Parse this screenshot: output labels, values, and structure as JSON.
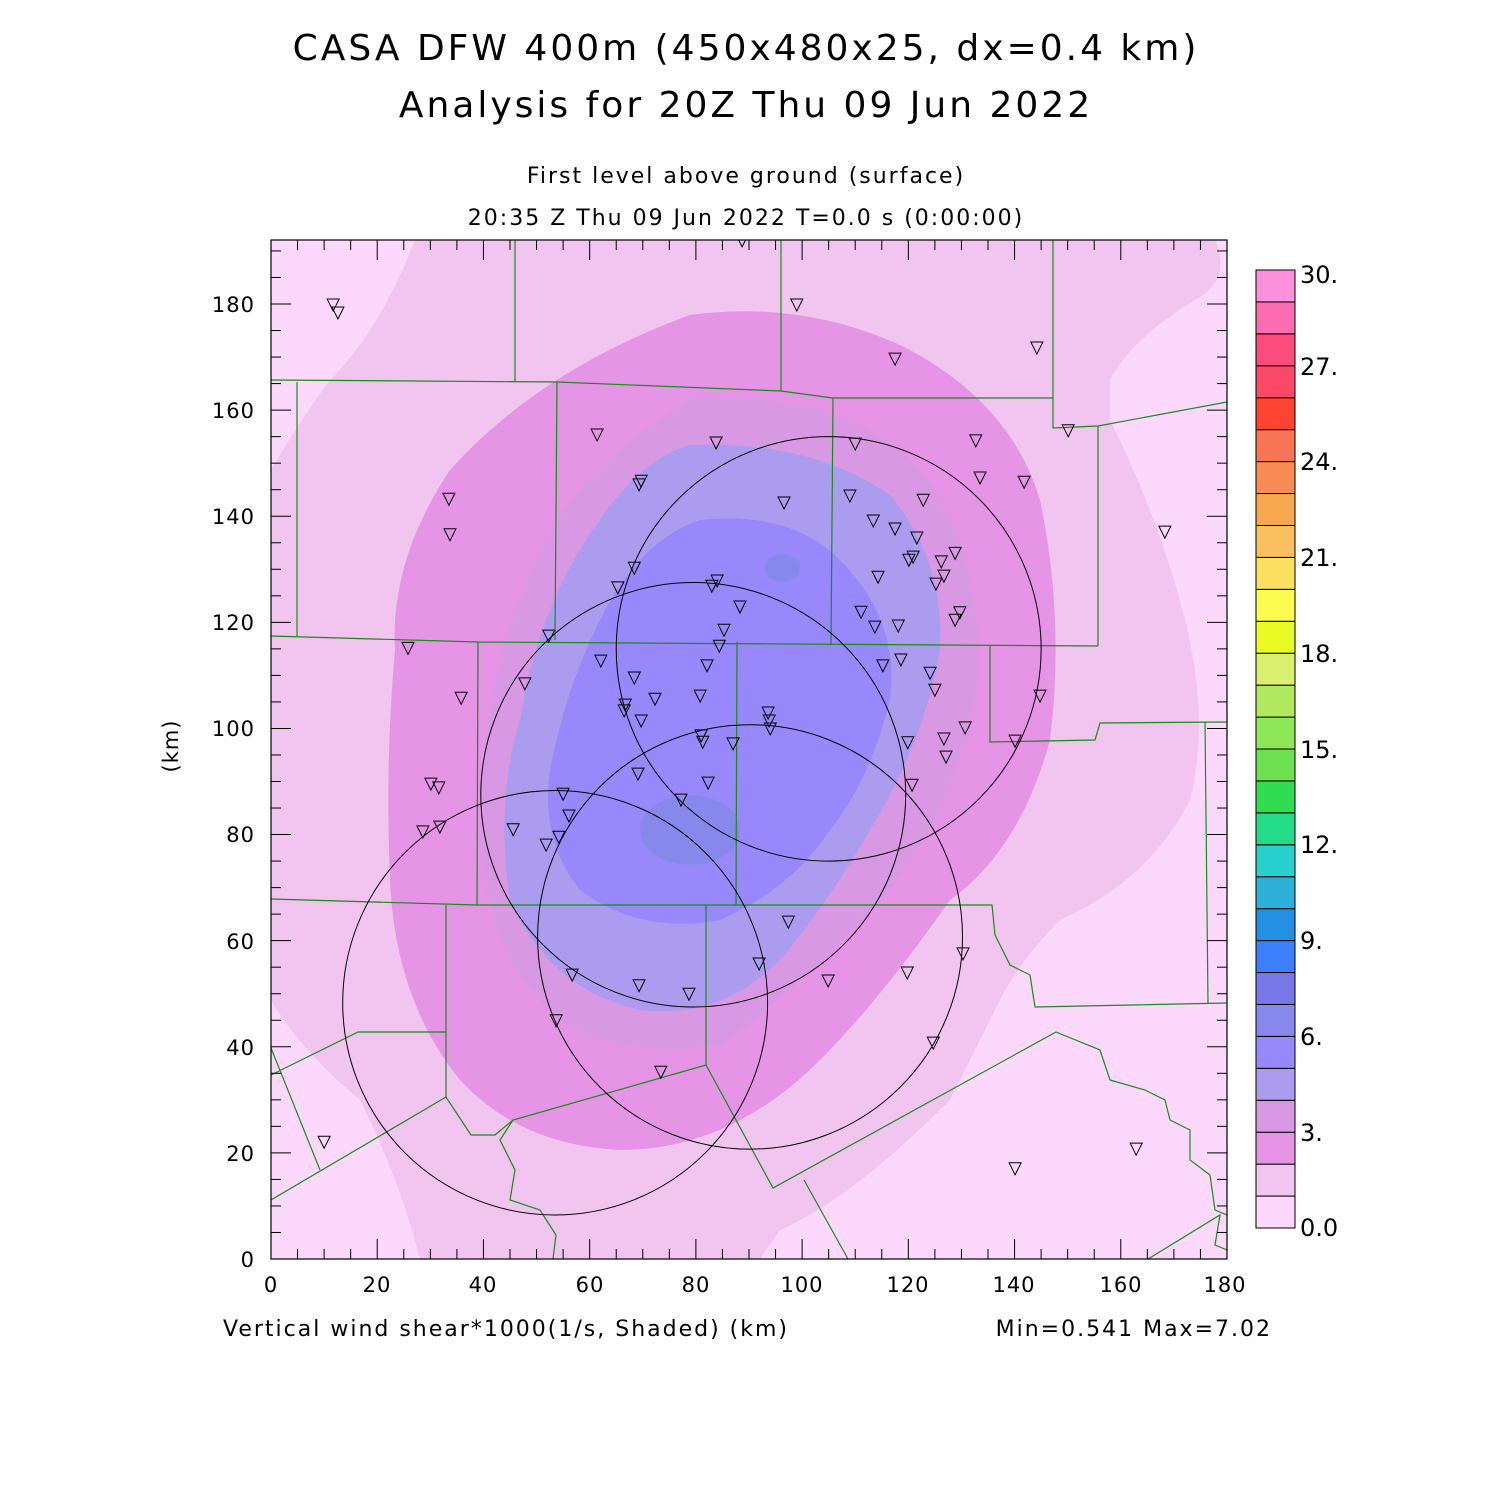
{
  "header": {
    "title_line1": "CASA DFW 400m (450x480x25, dx=0.4 km)",
    "title_line2": "Analysis for 20Z Thu 09 Jun 2022",
    "subtitle": "First level above ground (surface)",
    "time_line": "20:35 Z Thu 09 Jun 2022    T=0.0 s (0:00:00)"
  },
  "footer": {
    "field_label": "Vertical wind shear*1000(1/s, Shaded)  (km)",
    "minmax": "Min=0.541  Max=7.02"
  },
  "chart_data": {
    "type": "heatmap",
    "title": "CASA DFW 400m (450x480x25, dx=0.4 km)",
    "xlabel": "(km)",
    "ylabel": "(km)",
    "xlim": [
      0,
      180
    ],
    "ylim": [
      0,
      192
    ],
    "x_ticks": [
      "0",
      "20",
      "40",
      "60",
      "80",
      "100",
      "120",
      "140",
      "160",
      "180"
    ],
    "y_ticks": [
      "0",
      "20",
      "40",
      "60",
      "80",
      "100",
      "120",
      "140",
      "160",
      "180"
    ],
    "field": "Vertical wind shear*1000 (1/s)",
    "min": 0.541,
    "max": 7.02,
    "colorbar": {
      "labels": [
        "0.0",
        "3.",
        "6.",
        "9.",
        "12.",
        "15.",
        "18.",
        "21.",
        "24.",
        "27.",
        "30."
      ],
      "range": [
        0,
        30
      ],
      "interval": 1,
      "colors": [
        "#fcd8fc",
        "#f2c4f0",
        "#e694e6",
        "#d898e4",
        "#ac9cf0",
        "#9888fc",
        "#8888ec",
        "#7878e8",
        "#3c80fc",
        "#2490e4",
        "#2cb0d8",
        "#28d0d0",
        "#24dc88",
        "#30dc50",
        "#6ce050",
        "#8ce858",
        "#b0e860",
        "#dcf070",
        "#e8fc24",
        "#fcfc50",
        "#fce060",
        "#f8c060",
        "#f8a850",
        "#f88c54",
        "#f87454",
        "#fc4430",
        "#fc4868",
        "#fc4c7c",
        "#fc6cb0",
        "#fc90dc"
      ]
    },
    "radar_range_rings": [
      {
        "center": [
          105,
          115
        ],
        "radius_km": 40
      },
      {
        "center": [
          79.5,
          87.5
        ],
        "radius_km": 40
      },
      {
        "center": [
          90.2,
          60.7
        ],
        "radius_km": 40
      },
      {
        "center": [
          53.5,
          48.3
        ],
        "radius_km": 40
      }
    ],
    "stations": [
      [
        11.7,
        179.8
      ],
      [
        12.6,
        178.3
      ],
      [
        88.7,
        191.9
      ],
      [
        99.0,
        179.8
      ],
      [
        117.5,
        169.6
      ],
      [
        144.2,
        171.7
      ],
      [
        150.1,
        156.1
      ],
      [
        61.4,
        155.3
      ],
      [
        83.8,
        153.8
      ],
      [
        110.0,
        153.6
      ],
      [
        132.7,
        154.2
      ],
      [
        33.5,
        143.2
      ],
      [
        69.7,
        146.6
      ],
      [
        69.3,
        145.9
      ],
      [
        133.5,
        147.2
      ],
      [
        141.8,
        146.4
      ],
      [
        96.6,
        142.5
      ],
      [
        109.0,
        143.8
      ],
      [
        122.8,
        143.0
      ],
      [
        33.7,
        136.5
      ],
      [
        168.3,
        137.0
      ],
      [
        113.4,
        139.1
      ],
      [
        117.5,
        137.6
      ],
      [
        121.6,
        135.9
      ],
      [
        128.8,
        133.0
      ],
      [
        120.9,
        132.3
      ],
      [
        126.2,
        131.4
      ],
      [
        120.1,
        131.7
      ],
      [
        68.4,
        130.2
      ],
      [
        65.3,
        126.5
      ],
      [
        84.0,
        127.8
      ],
      [
        83.0,
        126.8
      ],
      [
        114.3,
        128.5
      ],
      [
        126.7,
        128.7
      ],
      [
        125.2,
        127.2
      ],
      [
        88.3,
        122.9
      ],
      [
        111.1,
        121.9
      ],
      [
        129.7,
        121.8
      ],
      [
        128.8,
        120.4
      ],
      [
        113.7,
        119.1
      ],
      [
        118.1,
        119.3
      ],
      [
        85.3,
        118.5
      ],
      [
        52.3,
        117.4
      ],
      [
        84.4,
        115.5
      ],
      [
        25.8,
        115.1
      ],
      [
        62.1,
        112.7
      ],
      [
        82.1,
        111.8
      ],
      [
        115.2,
        111.8
      ],
      [
        118.6,
        112.9
      ],
      [
        124.1,
        110.4
      ],
      [
        68.4,
        109.5
      ],
      [
        125.0,
        107.2
      ],
      [
        35.8,
        105.7
      ],
      [
        47.8,
        108.4
      ],
      [
        72.3,
        105.5
      ],
      [
        80.8,
        106.1
      ],
      [
        144.8,
        106.1
      ],
      [
        66.7,
        104.4
      ],
      [
        66.5,
        103.3
      ],
      [
        69.7,
        101.4
      ],
      [
        93.6,
        102.9
      ],
      [
        93.8,
        101.4
      ],
      [
        94.0,
        99.9
      ],
      [
        130.7,
        100.1
      ],
      [
        81.0,
        98.6
      ],
      [
        81.3,
        97.4
      ],
      [
        87.0,
        97.1
      ],
      [
        119.9,
        97.3
      ],
      [
        126.7,
        98.0
      ],
      [
        140.1,
        97.6
      ],
      [
        127.1,
        94.6
      ],
      [
        69.1,
        91.4
      ],
      [
        120.7,
        89.3
      ],
      [
        30.1,
        89.5
      ],
      [
        31.6,
        88.8
      ],
      [
        82.3,
        89.7
      ],
      [
        55.0,
        87.6
      ],
      [
        77.2,
        86.5
      ],
      [
        56.1,
        83.5
      ],
      [
        45.6,
        80.9
      ],
      [
        28.6,
        80.5
      ],
      [
        31.8,
        81.4
      ],
      [
        54.2,
        79.5
      ],
      [
        51.8,
        78.0
      ],
      [
        97.4,
        63.5
      ],
      [
        130.3,
        57.5
      ],
      [
        91.9,
        55.6
      ],
      [
        56.7,
        53.5
      ],
      [
        104.9,
        52.4
      ],
      [
        119.8,
        53.9
      ],
      [
        69.3,
        51.5
      ],
      [
        78.7,
        49.9
      ],
      [
        53.7,
        44.9
      ],
      [
        124.7,
        40.7
      ],
      [
        73.4,
        35.2
      ],
      [
        10.0,
        22.0
      ],
      [
        140.1,
        17.0
      ],
      [
        162.9,
        20.7
      ]
    ]
  }
}
